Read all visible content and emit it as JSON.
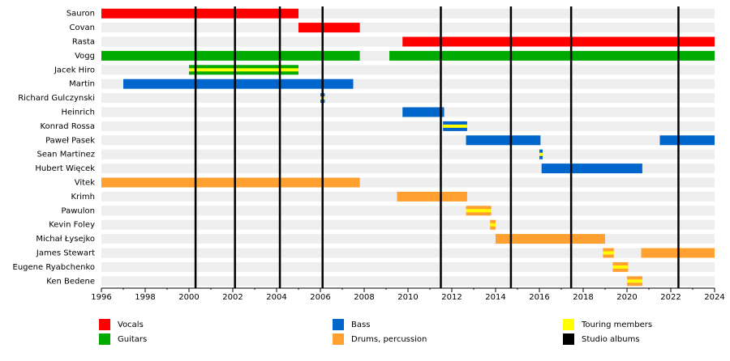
{
  "chart_data": {
    "type": "timeline",
    "xlim": [
      1996,
      2024
    ],
    "xticks": [
      1996,
      1998,
      2000,
      2002,
      2004,
      2006,
      2008,
      2010,
      2012,
      2014,
      2016,
      2018,
      2020,
      2022,
      2024
    ],
    "legend": [
      {
        "name": "Vocals",
        "color": "#ff0000"
      },
      {
        "name": "Guitars",
        "color": "#00aa00"
      },
      {
        "name": "Bass",
        "color": "#0066cc"
      },
      {
        "name": "Drums, percussion",
        "color": "#ffa030"
      },
      {
        "name": "Touring members",
        "color": "#ffff00"
      },
      {
        "name": "Studio albums",
        "color": "#000000"
      }
    ],
    "touring_color": "#ffff00",
    "albums": {
      "color": "#000000",
      "x": [
        2000.3,
        2002.1,
        2004.15,
        2006.1,
        2011.5,
        2014.7,
        2017.45,
        2022.35
      ]
    },
    "members": [
      {
        "name": "Sauron",
        "spans": [
          {
            "start": 1996,
            "end": 2005,
            "color": "#ff0000",
            "touring": false
          }
        ]
      },
      {
        "name": "Covan",
        "spans": [
          {
            "start": 2005,
            "end": 2007.8,
            "color": "#ff0000",
            "touring": false
          }
        ]
      },
      {
        "name": "Rasta",
        "spans": [
          {
            "start": 2009.75,
            "end": 2024,
            "color": "#ff0000",
            "touring": false
          }
        ]
      },
      {
        "name": "Vogg",
        "spans": [
          {
            "start": 1996,
            "end": 2007.8,
            "color": "#00aa00",
            "touring": false
          },
          {
            "start": 2009.15,
            "end": 2024,
            "color": "#00aa00",
            "touring": false
          }
        ]
      },
      {
        "name": "Jacek Hiro",
        "spans": [
          {
            "start": 2000,
            "end": 2005,
            "color": "#00aa00",
            "touring": true
          }
        ]
      },
      {
        "name": "Martin",
        "spans": [
          {
            "start": 1997,
            "end": 2007.5,
            "color": "#0066cc",
            "touring": false
          }
        ]
      },
      {
        "name": "Richard Gulczynski",
        "spans": [
          {
            "start": 2006,
            "end": 2006.2,
            "color": "#0066cc",
            "touring": true
          }
        ]
      },
      {
        "name": "Heinrich",
        "spans": [
          {
            "start": 2009.75,
            "end": 2011.65,
            "color": "#0066cc",
            "touring": false
          }
        ]
      },
      {
        "name": "Konrad Rossa",
        "spans": [
          {
            "start": 2011.6,
            "end": 2012.7,
            "color": "#0066cc",
            "touring": true
          }
        ]
      },
      {
        "name": "Paweł Pasek",
        "spans": [
          {
            "start": 2012.65,
            "end": 2016.05,
            "color": "#0066cc",
            "touring": false
          },
          {
            "start": 2021.5,
            "end": 2024,
            "color": "#0066cc",
            "touring": false
          }
        ]
      },
      {
        "name": "Sean Martinez",
        "spans": [
          {
            "start": 2016,
            "end": 2016.15,
            "color": "#0066cc",
            "touring": true
          }
        ]
      },
      {
        "name": "Hubert Więcek",
        "spans": [
          {
            "start": 2016.1,
            "end": 2020.7,
            "color": "#0066cc",
            "touring": false
          }
        ]
      },
      {
        "name": "Vitek",
        "spans": [
          {
            "start": 1996,
            "end": 2007.8,
            "color": "#ffa030",
            "touring": false
          }
        ]
      },
      {
        "name": "Krimh",
        "spans": [
          {
            "start": 2009.5,
            "end": 2012.7,
            "color": "#ffa030",
            "touring": false
          }
        ]
      },
      {
        "name": "Pawulon",
        "spans": [
          {
            "start": 2012.65,
            "end": 2013.8,
            "color": "#ffa030",
            "touring": true
          }
        ]
      },
      {
        "name": "Kevin Foley",
        "spans": [
          {
            "start": 2013.75,
            "end": 2014,
            "color": "#ffa030",
            "touring": true
          }
        ]
      },
      {
        "name": "Michał Łysejko",
        "spans": [
          {
            "start": 2014,
            "end": 2019,
            "color": "#ffa030",
            "touring": false
          }
        ]
      },
      {
        "name": "James Stewart",
        "spans": [
          {
            "start": 2018.9,
            "end": 2019.4,
            "color": "#ffa030",
            "touring": true
          },
          {
            "start": 2020.65,
            "end": 2024,
            "color": "#ffa030",
            "touring": false
          }
        ]
      },
      {
        "name": "Eugene Ryabchenko",
        "spans": [
          {
            "start": 2019.35,
            "end": 2020.05,
            "color": "#ffa030",
            "touring": true
          }
        ]
      },
      {
        "name": "Ken Bedene",
        "spans": [
          {
            "start": 2020,
            "end": 2020.7,
            "color": "#ffa030",
            "touring": true
          }
        ]
      }
    ]
  }
}
